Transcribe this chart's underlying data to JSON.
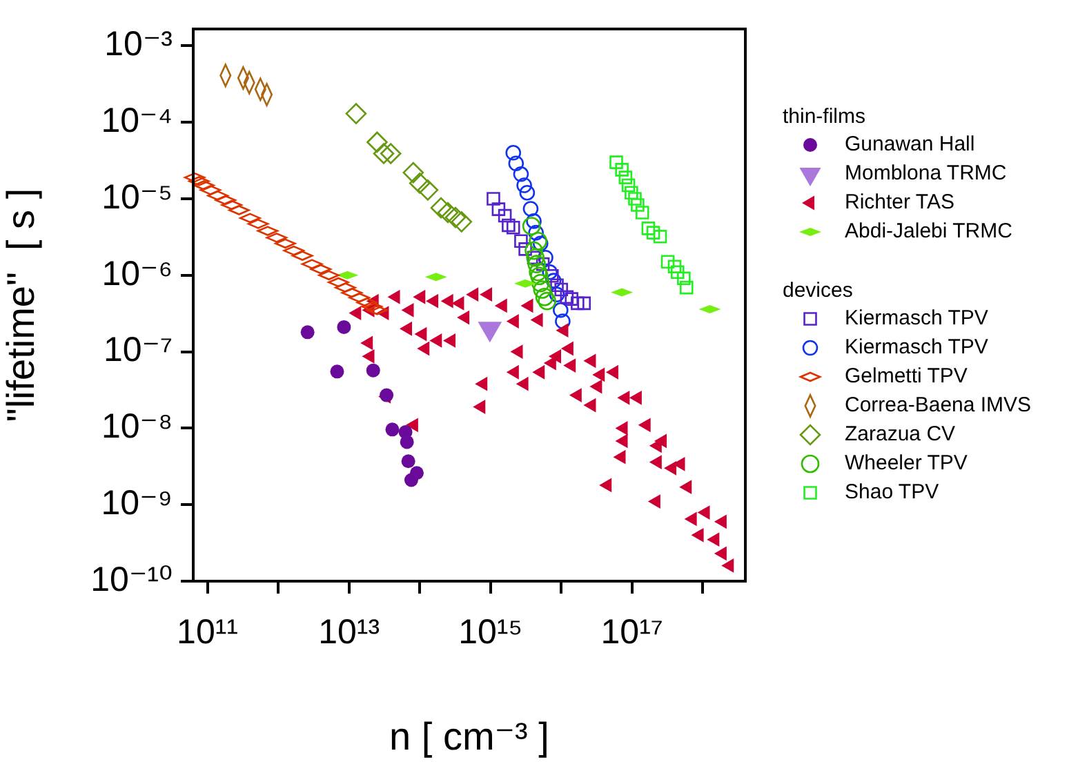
{
  "chart_data": {
    "type": "scatter",
    "xlabel": "n [ cm⁻³ ]",
    "ylabel": "\"lifetime\"  [ s ]",
    "legend_title": "thin-films",
    "annotations": [
      "devices"
    ],
    "log": "xy",
    "grid": false,
    "legend": "right",
    "xlim": [
      63000000000.0,
      4e+18
    ],
    "ylim": [
      1e-10,
      0.00166
    ],
    "xticks": [
      {
        "value": 100000000000.0,
        "label": "10¹¹"
      },
      {
        "value": 1000000000000.0,
        "label": null
      },
      {
        "value": 10000000000000.0,
        "label": "10¹³"
      },
      {
        "value": 100000000000000.0,
        "label": null
      },
      {
        "value": 1000000000000000.0,
        "label": "10¹⁵"
      },
      {
        "value": 1e+16,
        "label": null
      },
      {
        "value": 1e+17,
        "label": "10¹⁷"
      },
      {
        "value": 1e+18,
        "label": null
      }
    ],
    "yticks": [
      {
        "value": 1e-10,
        "label": "10⁻¹⁰"
      },
      {
        "value": 1e-09,
        "label": "10⁻⁹"
      },
      {
        "value": 1e-08,
        "label": "10⁻⁸"
      },
      {
        "value": 1e-07,
        "label": "10⁻⁷"
      },
      {
        "value": 1e-06,
        "label": "10⁻⁶"
      },
      {
        "value": 1e-05,
        "label": "10⁻⁵"
      },
      {
        "value": 0.0001,
        "label": "10⁻⁴"
      },
      {
        "value": 0.001,
        "label": "10⁻³"
      }
    ],
    "series": [
      {
        "name": "Gunawan Hall",
        "color": "#6a0a9a",
        "marker": "circle",
        "x": [
          2600000000000.0,
          8500000000000.0,
          6800000000000.0,
          22000000000000.0,
          34000000000000.0,
          41000000000000.0,
          63000000000000.0,
          66000000000000.0,
          69000000000000.0,
          76000000000000.0,
          91000000000000.0
        ],
        "values": [
          1.8e-07,
          2.1e-07,
          5.5e-08,
          5.7e-08,
          2.7e-08,
          9.6e-09,
          8.9e-09,
          6.6e-09,
          3.7e-09,
          2.1e-09,
          2.6e-09
        ]
      },
      {
        "name": "Momblona TRMC",
        "color": "#aa77dd",
        "marker": "triangle",
        "x": [
          980000000000000.0
        ],
        "values": [
          2e-07
        ]
      },
      {
        "name": "Richter TAS",
        "color": "#cc0033",
        "marker": "triangle",
        "x": [
          13000000000000.0,
          20000000000000.0,
          23000000000000.0,
          32000000000000.0,
          46000000000000.0,
          72000000000000.0,
          105000000000000.0,
          160000000000000.0,
          260000000000000.0,
          370000000000000.0,
          590000000000000.0,
          920000000000000.0,
          1500000000000000.0,
          3500000000000000.0,
          68000000000000.0,
          110000000000000.0,
          180000000000000.0,
          280000000000000.0,
          440000000000000.0,
          2200000000000000.0,
          4800000000000000.0,
          1.1e+16,
          120000000000000.0,
          19000000000000.0,
          20000000000000.0,
          34000000000000.0,
          83000000000000.0,
          790000000000000.0,
          740000000000000.0,
          2500000000000000.0,
          2200000000000000.0,
          3000000000000000.0,
          5100000000000000.0,
          7400000000000000.0,
          8700000000000000.0,
          1.3e+16,
          1.4e+16,
          2.7e+16,
          3.6e+16,
          5.6e+16,
          3.3e+16,
          1.7e+16,
          2.7e+16,
          8.1e+16,
          1.2e+17,
          7.6e+16,
          1.6e+17,
          7.6e+16,
          7.1e+16,
          4.5e+16,
          2.3e+17,
          2.7e+17,
          2.3e+17,
          3.7e+17,
          4.9e+17,
          6.1e+17,
          2.2e+17,
          7.2e+17,
          1.1e+18,
          9e+17,
          1.5e+18,
          1.9e+18,
          2.4e+18,
          1.9e+18
        ],
        "values": [
          3.2e-07,
          3.5e-07,
          4.6e-07,
          3.2e-07,
          5.2e-07,
          3.5e-07,
          5.2e-07,
          4.6e-07,
          4.6e-07,
          4.3e-07,
          5.6e-07,
          5.6e-07,
          4e-07,
          4e-07,
          2e-07,
          1.7e-07,
          1.4e-07,
          1.4e-07,
          2.8e-07,
          2.5e-07,
          2.6e-07,
          1.9e-07,
          1.1e-07,
          1.3e-07,
          8.7e-08,
          2.6e-08,
          1.1e-08,
          3.8e-08,
          1.9e-08,
          1e-07,
          5.4e-08,
          3.8e-08,
          5.4e-08,
          7.1e-08,
          8.7e-08,
          1.1e-07,
          6.6e-08,
          7.6e-08,
          5e-08,
          5.4e-08,
          3.5e-08,
          2.7e-08,
          2e-08,
          2.5e-08,
          2.5e-08,
          1e-08,
          1.1e-08,
          6.8e-09,
          4.2e-09,
          1.8e-09,
          5.9e-09,
          6.8e-09,
          3.6e-09,
          3e-09,
          3.4e-09,
          1.7e-09,
          1.1e-09,
          6.5e-10,
          7.9e-10,
          4e-10,
          3.5e-10,
          2.3e-10,
          1.6e-10,
          6e-10
        ]
      },
      {
        "name": "Abdi-Jalebi TRMC",
        "color": "#77ee11",
        "marker": "diamond",
        "x": [
          9500000000000.0,
          170000000000000.0,
          3100000000000000.0,
          7.2e+16,
          1.26e+18
        ],
        "values": [
          1e-06,
          9.5e-07,
          7.8e-07,
          6e-07,
          3.6e-07
        ]
      },
      {
        "name": "Kiermasch TPV",
        "color": "#5522cc",
        "marker": "square",
        "x": [
          1100000000000000.0,
          1300000000000000.0,
          1600000000000000.0,
          1800000000000000.0,
          2100000000000000.0,
          2700000000000000.0,
          3100000000000000.0,
          4100000000000000.0,
          5500000000000000.0,
          7400000000000000.0,
          8700000000000000.0,
          1e+16,
          1.2e+16,
          1.4e+16,
          1.7e+16,
          2.1e+16
        ],
        "values": [
          1e-05,
          7.3e-06,
          6e-06,
          4.5e-06,
          4.2e-06,
          2.8e-06,
          2.2e-06,
          1.7e-06,
          1.4e-06,
          9.8e-07,
          7.4e-07,
          6.5e-07,
          5.2e-07,
          4.9e-07,
          4.3e-07,
          4.3e-07
        ]
      },
      {
        "name": "Kiermasch TPV",
        "color": "#1133ee",
        "marker": "circle",
        "x": [
          2100000000000000.0,
          2300000000000000.0,
          2700000000000000.0,
          3000000000000000.0,
          3300000000000000.0,
          3700000000000000.0,
          4100000000000000.0,
          4400000000000000.0,
          5100000000000000.0,
          6000000000000000.0,
          6900000000000000.0,
          7800000000000000.0,
          8700000000000000.0,
          9800000000000000.0,
          1.05e+16
        ],
        "values": [
          4e-05,
          2.9e-05,
          2.1e-05,
          1.5e-05,
          1.2e-05,
          7.4e-06,
          5.1e-06,
          3.6e-06,
          2.6e-06,
          1.7e-06,
          1.1e-06,
          8.5e-07,
          5.6e-07,
          3.5e-07,
          2.5e-07
        ]
      },
      {
        "name": "Gelmetti TPV",
        "color": "#dd3300",
        "marker": "diamond",
        "x": [
          66000000000.0,
          76000000000.0,
          89000000000.0,
          110000000000.0,
          140000000000.0,
          180000000000.0,
          220000000000.0,
          280000000000.0,
          400000000000.0,
          520000000000.0,
          710000000000.0,
          950000000000.0,
          1260000000000.0,
          1660000000000.0,
          2200000000000.0,
          3000000000000.0,
          4000000000000.0,
          5200000000000.0,
          7100000000000.0,
          8900000000000.0,
          11000000000000.0,
          14000000000000.0,
          18000000000000.0,
          21000000000000.0,
          25000000000000.0
        ],
        "values": [
          1.9e-05,
          1.7e-05,
          1.5e-05,
          1.3e-05,
          1.1e-05,
          9.6e-06,
          8.3e-06,
          7.1e-06,
          5.6e-06,
          4.7e-06,
          3.8e-06,
          3.1e-06,
          2.6e-06,
          2.1e-06,
          1.8e-06,
          1.4e-06,
          1.2e-06,
          1e-06,
          8.1e-07,
          6.9e-07,
          5.9e-07,
          5.1e-07,
          4.4e-07,
          3.9e-07,
          3.5e-07
        ]
      },
      {
        "name": "Correa-Baena IMVS",
        "color": "#aa6611",
        "marker": "diamond",
        "x": [
          180000000000.0,
          320000000000.0,
          390000000000.0,
          560000000000.0,
          690000000000.0
        ],
        "values": [
          0.00041,
          0.00038,
          0.00033,
          0.00027,
          0.00023
        ]
      },
      {
        "name": "Zarazua CV",
        "color": "#669911",
        "marker": "diamond",
        "x": [
          12600000000000.0,
          25000000000000.0,
          31000000000000.0,
          39000000000000.0,
          81000000000000.0,
          100000000000000.0,
          130000000000000.0,
          200000000000000.0,
          250000000000000.0,
          320000000000000.0,
          390000000000000.0
        ],
        "values": [
          0.00013,
          5.5e-05,
          3.9e-05,
          3.9e-05,
          2.2e-05,
          1.6e-05,
          1.3e-05,
          7.6e-06,
          6.6e-06,
          5.7e-06,
          5e-06
        ]
      },
      {
        "name": "Wheeler TPV",
        "color": "#33bb00",
        "marker": "circle",
        "x": [
          3800000000000000.0,
          4700000000000000.0,
          4100000000000000.0,
          4300000000000000.0,
          4500000000000000.0,
          4700000000000000.0,
          4900000000000000.0,
          5100000000000000.0,
          5400000000000000.0,
          5800000000000000.0,
          6300000000000000.0
        ],
        "values": [
          4.4e-06,
          2.8e-06,
          2.1e-06,
          1.7e-06,
          1.4e-06,
          1.1e-06,
          9.8e-07,
          7.9e-07,
          6.5e-07,
          5.2e-07,
          4.6e-07
        ]
      },
      {
        "name": "Shao TPV",
        "color": "#22ee22",
        "marker": "square",
        "x": [
          6e+16,
          7.2e+16,
          8.1e+16,
          8.9e+16,
          9.8e+16,
          1.1e+17,
          1.2e+17,
          1.4e+17,
          1.7e+17,
          2e+17,
          2.5e+17,
          3.2e+17,
          4e+17,
          4.4e+17,
          5.4e+17,
          5.9e+17
        ],
        "values": [
          3e-05,
          2.4e-05,
          1.9e-05,
          1.5e-05,
          1.2e-05,
          1e-05,
          8.3e-06,
          6.6e-06,
          4.1e-06,
          3.6e-06,
          3.2e-06,
          1.5e-06,
          1.3e-06,
          1.1e-06,
          9.1e-07,
          6.9e-07
        ]
      }
    ]
  }
}
